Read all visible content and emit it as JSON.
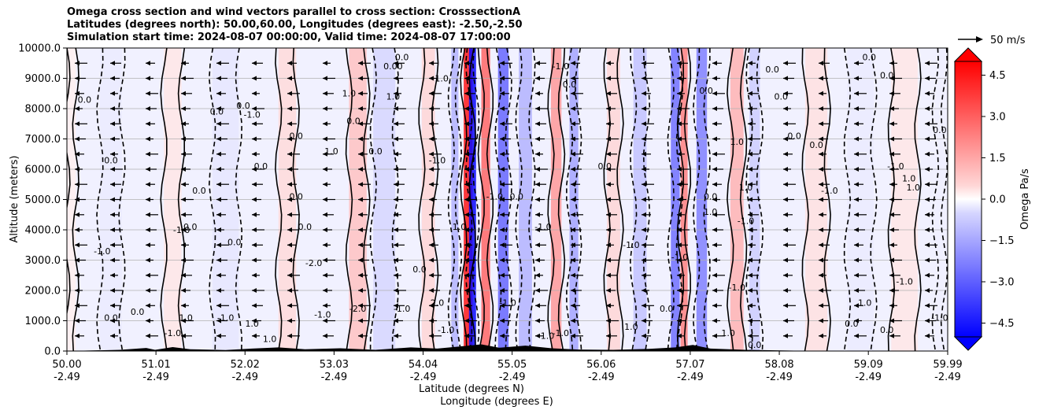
{
  "chart_data": {
    "type": "heatmap",
    "title_lines": [
      "Omega cross section and wind vectors parallel to cross section: CrosssectionA",
      "Latitudes (degrees north): 50.00,60.00, Longitudes (degrees east): -2.50,-2.50",
      "Simulation start time: 2024-08-07 00:00:00, Valid time: 2024-08-07 17:00:00"
    ],
    "ylabel": "Altitude (meters)",
    "xlabel_line1": "Latitude (degrees N)",
    "xlabel_line2": "Longitude (degrees E)",
    "ylim": [
      0,
      10000
    ],
    "y_ticks": [
      "0.0",
      "1000.0",
      "2000.0",
      "3000.0",
      "4000.0",
      "5000.0",
      "6000.0",
      "7000.0",
      "8000.0",
      "9000.0",
      "10000.0"
    ],
    "y_tick_values": [
      0,
      1000,
      2000,
      3000,
      4000,
      5000,
      6000,
      7000,
      8000,
      9000,
      10000
    ],
    "xlim": [
      50.0,
      59.99
    ],
    "x_ticks": [
      {
        "lat": "50.00",
        "lon": "-2.49",
        "v": 50.0
      },
      {
        "lat": "51.01",
        "lon": "-2.49",
        "v": 51.01
      },
      {
        "lat": "52.02",
        "lon": "-2.49",
        "v": 52.02
      },
      {
        "lat": "53.03",
        "lon": "-2.49",
        "v": 53.03
      },
      {
        "lat": "54.04",
        "lon": "-2.49",
        "v": 54.04
      },
      {
        "lat": "55.05",
        "lon": "-2.49",
        "v": 55.05
      },
      {
        "lat": "56.06",
        "lon": "-2.49",
        "v": 56.06
      },
      {
        "lat": "57.07",
        "lon": "-2.49",
        "v": 57.07
      },
      {
        "lat": "58.08",
        "lon": "-2.49",
        "v": 58.08
      },
      {
        "lat": "59.09",
        "lon": "-2.49",
        "v": 59.09
      },
      {
        "lat": "59.99",
        "lon": "-2.49",
        "v": 59.99
      }
    ],
    "colorbar": {
      "label": "Omega Pa/s",
      "range": [
        -5.0,
        5.0
      ],
      "tick_labels": [
        "4.5",
        "3.0",
        "1.5",
        "0.0",
        "−1.5",
        "−3.0",
        "−4.5"
      ],
      "tick_values": [
        4.5,
        3.0,
        1.5,
        0.0,
        -1.5,
        -3.0,
        -4.5
      ],
      "extend": "both",
      "colors": {
        "negative": "#0000ff",
        "zero": "#ffffff",
        "positive": "#ff0000"
      }
    },
    "quiver_key": "50 m/s",
    "omega_features": [
      {
        "lat": 50.05,
        "width": 0.1,
        "value": 0.3
      },
      {
        "lat": 50.5,
        "width": 0.25,
        "value": -0.4
      },
      {
        "lat": 51.2,
        "width": 0.2,
        "value": 0.5
      },
      {
        "lat": 51.8,
        "width": 0.3,
        "value": -0.5
      },
      {
        "lat": 52.5,
        "width": 0.2,
        "value": 0.7
      },
      {
        "lat": 53.3,
        "width": 0.2,
        "value": 1.2
      },
      {
        "lat": 53.6,
        "width": 0.25,
        "value": -0.8
      },
      {
        "lat": 54.1,
        "width": 0.15,
        "value": 0.8
      },
      {
        "lat": 54.4,
        "width": 0.08,
        "value": -1.5
      },
      {
        "lat": 54.55,
        "width": 0.1,
        "value": 4.5
      },
      {
        "lat": 54.6,
        "width": 0.08,
        "value": -4.8
      },
      {
        "lat": 54.75,
        "width": 0.1,
        "value": 3.0
      },
      {
        "lat": 54.95,
        "width": 0.12,
        "value": -3.0
      },
      {
        "lat": 55.2,
        "width": 0.15,
        "value": -1.5
      },
      {
        "lat": 55.55,
        "width": 0.12,
        "value": 2.0
      },
      {
        "lat": 55.75,
        "width": 0.1,
        "value": -1.8
      },
      {
        "lat": 56.2,
        "width": 0.15,
        "value": 0.8
      },
      {
        "lat": 56.5,
        "width": 0.15,
        "value": -1.2
      },
      {
        "lat": 56.9,
        "width": 0.1,
        "value": -2.8
      },
      {
        "lat": 57.0,
        "width": 0.08,
        "value": 2.5
      },
      {
        "lat": 57.2,
        "width": 0.12,
        "value": -2.5
      },
      {
        "lat": 57.6,
        "width": 0.15,
        "value": 1.5
      },
      {
        "lat": 57.8,
        "width": 0.12,
        "value": -1.0
      },
      {
        "lat": 58.5,
        "width": 0.25,
        "value": 0.6
      },
      {
        "lat": 59.0,
        "width": 0.3,
        "value": -0.4
      },
      {
        "lat": 59.5,
        "width": 0.3,
        "value": 0.5
      },
      {
        "lat": 59.9,
        "width": 0.1,
        "value": -0.3
      }
    ],
    "contour_labels": [
      {
        "text": "0.0",
        "lat": 50.2,
        "alt": 8200
      },
      {
        "text": "0.0",
        "lat": 50.5,
        "alt": 6200
      },
      {
        "text": "-1.0",
        "lat": 50.4,
        "alt": 3200
      },
      {
        "text": "0.0",
        "lat": 50.5,
        "alt": 1000
      },
      {
        "text": "0.0",
        "lat": 50.8,
        "alt": 1200
      },
      {
        "text": "-1.0",
        "lat": 51.2,
        "alt": 500
      },
      {
        "text": "1.0",
        "lat": 51.35,
        "alt": 1000
      },
      {
        "text": "0.0",
        "lat": 51.4,
        "alt": 4000
      },
      {
        "text": "-1.0",
        "lat": 51.3,
        "alt": 3900
      },
      {
        "text": "0.0",
        "lat": 51.5,
        "alt": 5200
      },
      {
        "text": "0.0",
        "lat": 51.7,
        "alt": 7800
      },
      {
        "text": "0.0",
        "lat": 51.9,
        "alt": 3500
      },
      {
        "text": "0.0",
        "lat": 52.0,
        "alt": 8000
      },
      {
        "text": "-1.0",
        "lat": 51.8,
        "alt": 1000
      },
      {
        "text": "1.0",
        "lat": 52.1,
        "alt": 800
      },
      {
        "text": "0.0",
        "lat": 52.2,
        "alt": 6000
      },
      {
        "text": "-1.0",
        "lat": 52.1,
        "alt": 7700
      },
      {
        "text": "1.0",
        "lat": 52.3,
        "alt": 300
      },
      {
        "text": "0.0",
        "lat": 52.6,
        "alt": 7000
      },
      {
        "text": "0.0",
        "lat": 52.6,
        "alt": 5000
      },
      {
        "text": "0.0",
        "lat": 52.7,
        "alt": 4000
      },
      {
        "text": "-2.0",
        "lat": 52.8,
        "alt": 2800
      },
      {
        "text": "1.0",
        "lat": 53.0,
        "alt": 6500
      },
      {
        "text": "1.0",
        "lat": 53.2,
        "alt": 8400
      },
      {
        "text": "0.0",
        "lat": 53.25,
        "alt": 7500
      },
      {
        "text": "-1.0",
        "lat": 52.9,
        "alt": 1100
      },
      {
        "text": "-2.0",
        "lat": 53.3,
        "alt": 1300
      },
      {
        "text": "0.0",
        "lat": 53.5,
        "alt": 6500
      },
      {
        "text": "0.00",
        "lat": 53.7,
        "alt": 9300
      },
      {
        "text": "0.0",
        "lat": 53.8,
        "alt": 9600
      },
      {
        "text": "1.0",
        "lat": 53.7,
        "alt": 8300
      },
      {
        "text": "-1.0",
        "lat": 53.8,
        "alt": 1300
      },
      {
        "text": "0.0",
        "lat": 54.0,
        "alt": 2600
      },
      {
        "text": "1.0",
        "lat": 54.25,
        "alt": 8900
      },
      {
        "text": "-1.0",
        "lat": 54.2,
        "alt": 6200
      },
      {
        "text": "1.0",
        "lat": 54.45,
        "alt": 4000
      },
      {
        "text": "2.0",
        "lat": 54.2,
        "alt": 1500
      },
      {
        "text": "-1.0",
        "lat": 54.3,
        "alt": 600
      },
      {
        "text": "-1.0",
        "lat": 54.85,
        "alt": 5000
      },
      {
        "text": "0.0",
        "lat": 55.1,
        "alt": 5000
      },
      {
        "text": "-1.0",
        "lat": 55.4,
        "alt": 4000
      },
      {
        "text": "-1.0",
        "lat": 55.0,
        "alt": 1500
      },
      {
        "text": "1.0",
        "lat": 55.45,
        "alt": 400
      },
      {
        "text": "-1.0",
        "lat": 55.6,
        "alt": 500
      },
      {
        "text": "-1.0",
        "lat": 55.6,
        "alt": 9300
      },
      {
        "text": "0.0",
        "lat": 55.7,
        "alt": 8700
      },
      {
        "text": "0.0",
        "lat": 56.1,
        "alt": 6000
      },
      {
        "text": "-1.0",
        "lat": 56.4,
        "alt": 3400
      },
      {
        "text": "0.0",
        "lat": 56.8,
        "alt": 1300
      },
      {
        "text": "1.0",
        "lat": 56.4,
        "alt": 700
      },
      {
        "text": "-1.0",
        "lat": 56.95,
        "alt": 3000
      },
      {
        "text": "1.0",
        "lat": 57.3,
        "alt": 4500
      },
      {
        "text": "-1.0",
        "lat": 57.7,
        "alt": 4200
      },
      {
        "text": "0.0",
        "lat": 57.25,
        "alt": 8500
      },
      {
        "text": "0.0",
        "lat": 57.3,
        "alt": 5000
      },
      {
        "text": "-1.0",
        "lat": 57.6,
        "alt": 2000
      },
      {
        "text": "1.0",
        "lat": 57.7,
        "alt": 5300
      },
      {
        "text": "1.0",
        "lat": 57.5,
        "alt": 500
      },
      {
        "text": "0.0",
        "lat": 57.8,
        "alt": 100
      },
      {
        "text": "1.0",
        "lat": 57.6,
        "alt": 6800
      },
      {
        "text": "0.0",
        "lat": 58.0,
        "alt": 9200
      },
      {
        "text": "0.0",
        "lat": 58.1,
        "alt": 8300
      },
      {
        "text": "0.0",
        "lat": 58.25,
        "alt": 7000
      },
      {
        "text": "0.0",
        "lat": 58.5,
        "alt": 6700
      },
      {
        "text": "-1.0",
        "lat": 58.65,
        "alt": 5200
      },
      {
        "text": "0.0",
        "lat": 59.1,
        "alt": 9600
      },
      {
        "text": "0.0",
        "lat": 59.3,
        "alt": 9000
      },
      {
        "text": "0.0",
        "lat": 59.9,
        "alt": 7200
      },
      {
        "text": "-1.0",
        "lat": 59.4,
        "alt": 6000
      },
      {
        "text": "1.0",
        "lat": 59.55,
        "alt": 5600
      },
      {
        "text": "1.0",
        "lat": 59.6,
        "alt": 5300
      },
      {
        "text": "-1.0",
        "lat": 59.5,
        "alt": 2200
      },
      {
        "text": "1.0",
        "lat": 59.05,
        "alt": 1500
      },
      {
        "text": "0.0",
        "lat": 59.3,
        "alt": 600
      },
      {
        "text": "-1.0",
        "lat": 59.9,
        "alt": 1000
      },
      {
        "text": "0.0",
        "lat": 58.9,
        "alt": 800
      }
    ]
  }
}
